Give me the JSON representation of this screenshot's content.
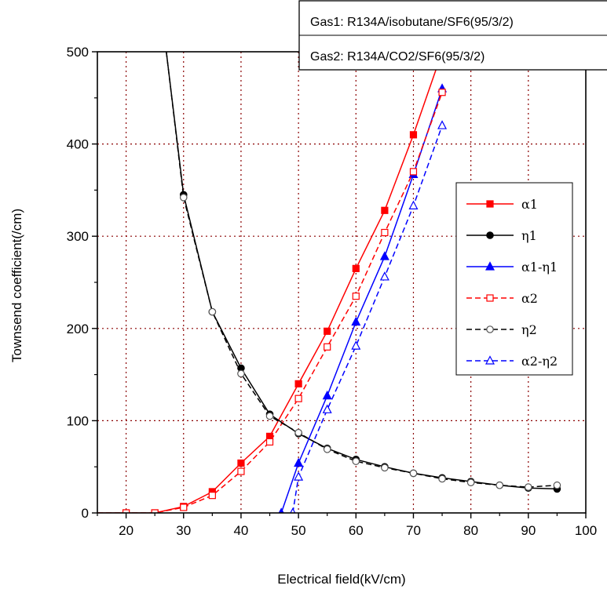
{
  "chart_data": {
    "type": "line",
    "xlabel": "Electrical field(kV/cm)",
    "ylabel": "Townsend coefficient(/cm)",
    "xlim": [
      15,
      100
    ],
    "ylim": [
      0,
      500
    ],
    "xticks": [
      20,
      30,
      40,
      50,
      60,
      70,
      80,
      90,
      100
    ],
    "yticks": [
      0,
      100,
      200,
      300,
      400,
      500
    ],
    "grid": true,
    "gas_labels": [
      "Gas1: R134A/isobutane/SF6(95/3/2)",
      "Gas2: R134A/CO2/SF6(95/3/2)"
    ],
    "legend_position": "right",
    "series": [
      {
        "name": "α1",
        "color": "#ff0000",
        "dash": "solid",
        "marker": "square-filled",
        "x": [
          15,
          20,
          25,
          30,
          35,
          40,
          45,
          50,
          55,
          60,
          65,
          70,
          75
        ],
        "y": [
          0,
          0,
          0,
          7,
          23,
          54,
          83,
          140,
          197,
          265,
          328,
          410,
          500
        ]
      },
      {
        "name": "η1",
        "color": "#000000",
        "dash": "solid",
        "marker": "circle-filled",
        "x": [
          27,
          30,
          35,
          40,
          45,
          50,
          55,
          60,
          65,
          70,
          75,
          80,
          85,
          90,
          95
        ],
        "y": [
          500,
          345,
          218,
          157,
          107,
          86,
          70,
          58,
          50,
          43,
          38,
          34,
          30,
          27,
          26
        ]
      },
      {
        "name": "α1-η1",
        "color": "#0000ff",
        "dash": "solid",
        "marker": "triangle-filled",
        "x": [
          47,
          50,
          55,
          60,
          65,
          70,
          75
        ],
        "y": [
          0,
          54,
          127,
          207,
          278,
          367,
          460
        ]
      },
      {
        "name": "α2",
        "color": "#ff0000",
        "dash": "dashed",
        "marker": "square-open",
        "x": [
          15,
          20,
          25,
          30,
          35,
          40,
          45,
          50,
          55,
          60,
          65,
          70,
          75
        ],
        "y": [
          0,
          0,
          0,
          6,
          19,
          45,
          77,
          124,
          180,
          235,
          304,
          370,
          456
        ]
      },
      {
        "name": "η2",
        "color": "#000000",
        "dash": "dashed",
        "marker": "circle-open",
        "x": [
          27,
          30,
          35,
          40,
          45,
          50,
          55,
          60,
          65,
          70,
          75,
          80,
          85,
          90,
          95
        ],
        "y": [
          500,
          342,
          218,
          151,
          105,
          87,
          69,
          56,
          49,
          43,
          37,
          33,
          30,
          28,
          30
        ]
      },
      {
        "name": "α2-η2",
        "color": "#0000ff",
        "dash": "dashed",
        "marker": "triangle-open",
        "x": [
          49,
          50,
          55,
          60,
          65,
          70,
          75
        ],
        "y": [
          0,
          39,
          112,
          181,
          256,
          333,
          420
        ]
      }
    ]
  }
}
